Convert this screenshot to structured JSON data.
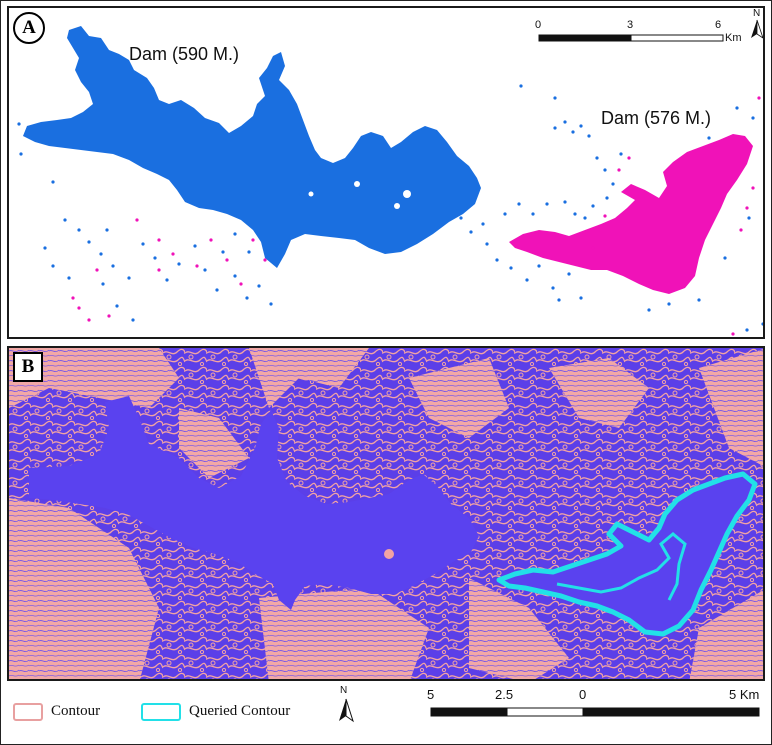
{
  "panel_a": {
    "label": "A",
    "dam_590_label": "Dam (590 M.)",
    "dam_576_label": "Dam (576 M.)",
    "scale": {
      "ticks": [
        "0",
        "3",
        "6"
      ],
      "unit": "Km"
    },
    "north": "N",
    "colors": {
      "dam_590": "#1a6fe0",
      "dam_576": "#f012b8",
      "points_blue": "#1a6fe0",
      "points_pink": "#f012b8"
    }
  },
  "panel_b": {
    "label": "B",
    "colors": {
      "background": "#5b3fe8",
      "contour": "#f2a3a3",
      "queried_contour": "#22e0e8",
      "lake": "#5a42ef"
    }
  },
  "legend": {
    "items": [
      {
        "label": "Contour",
        "color": "#e8a0a0",
        "swatch": "contour-swatch"
      },
      {
        "label": "Queried Contour",
        "color": "#22e0e8",
        "swatch": "queried-swatch"
      }
    ],
    "north": "N",
    "scale": {
      "ticks": [
        "5",
        "2.5",
        "0",
        "5 Km"
      ]
    }
  }
}
